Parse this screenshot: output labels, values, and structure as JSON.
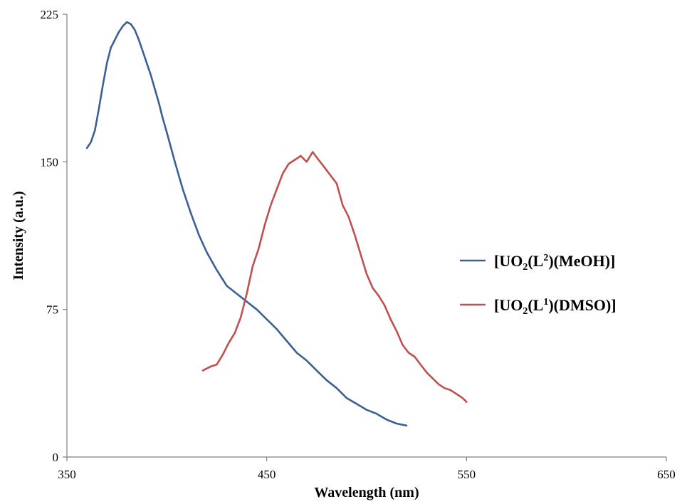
{
  "chart_data": {
    "type": "line",
    "title": "",
    "xlabel": "Wavelength (nm)",
    "ylabel": "Intensity (a.u.)",
    "xlim": [
      350,
      650
    ],
    "ylim": [
      0,
      225
    ],
    "xticks": [
      "350",
      "450",
      "550",
      "650"
    ],
    "yticks": [
      "0",
      "75",
      "150",
      "225"
    ],
    "grid": false,
    "legend_position": "right",
    "series": [
      {
        "name": "[UO2(L2)(MeOH)]",
        "legend_parts": {
          "pre": "[UO",
          "sub": "2",
          "mid": "(L",
          "sup": "2",
          "post": ")(MeOH)]"
        },
        "color": "#3c5f96",
        "x": [
          360,
          362,
          364,
          366,
          368,
          370,
          372,
          374,
          376,
          378,
          380,
          382,
          384,
          386,
          388,
          390,
          392,
          394,
          396,
          398,
          400,
          404,
          408,
          412,
          416,
          420,
          425,
          430,
          435,
          440,
          445,
          450,
          455,
          460,
          465,
          470,
          475,
          480,
          485,
          490,
          495,
          500,
          505,
          510,
          515,
          520
        ],
        "y": [
          157,
          160,
          166,
          177,
          189,
          200,
          208,
          212,
          216,
          219,
          221,
          220,
          217,
          212,
          206,
          200,
          194,
          187,
          180,
          172,
          165,
          150,
          136,
          124,
          113,
          104,
          95,
          87,
          83,
          79,
          75,
          70,
          65,
          59,
          53,
          49,
          44,
          39,
          35,
          30,
          27,
          24,
          22,
          19,
          17,
          16
        ]
      },
      {
        "name": "[UO2(L1)(DMSO)]",
        "legend_parts": {
          "pre": "[UO",
          "sub": "2",
          "mid": "(L",
          "sup": "1",
          "post": ")(DMSO)]"
        },
        "color": "#c05050",
        "x": [
          418,
          422,
          425,
          428,
          431,
          434,
          437,
          440,
          443,
          446,
          449,
          452,
          455,
          458,
          461,
          464,
          467,
          470,
          473,
          476,
          479,
          482,
          485,
          488,
          491,
          494,
          497,
          500,
          503,
          506,
          509,
          512,
          515,
          518,
          521,
          524,
          527,
          530,
          533,
          536,
          539,
          542,
          545,
          548,
          550
        ],
        "y": [
          44,
          46,
          47,
          52,
          58,
          63,
          71,
          83,
          97,
          106,
          118,
          128,
          136,
          144,
          149,
          151,
          153,
          150,
          155,
          151,
          147,
          143,
          139,
          128,
          122,
          113,
          103,
          93,
          86,
          82,
          77,
          70,
          64,
          57,
          53,
          51,
          47,
          43,
          40,
          37,
          35,
          34,
          32,
          30,
          28
        ]
      }
    ]
  }
}
